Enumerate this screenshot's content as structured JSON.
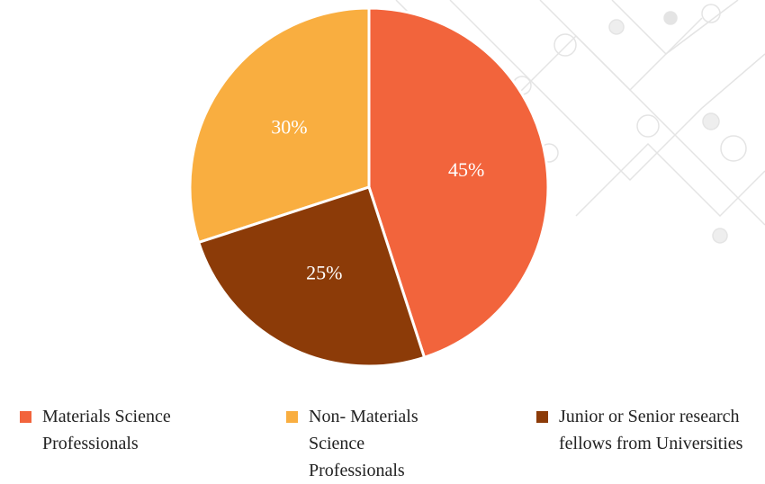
{
  "chart_data": {
    "type": "pie",
    "categories": [
      "Materials Science Professionals",
      "Non- Materials Science Professionals",
      "Junior or Senior research fellows from Universities"
    ],
    "values": [
      45,
      30,
      25
    ],
    "value_labels": [
      "45%",
      "30%",
      "25%"
    ],
    "colors": [
      "#f2643c",
      "#f9ae40",
      "#8c3b08"
    ],
    "legend": "bottom"
  }
}
